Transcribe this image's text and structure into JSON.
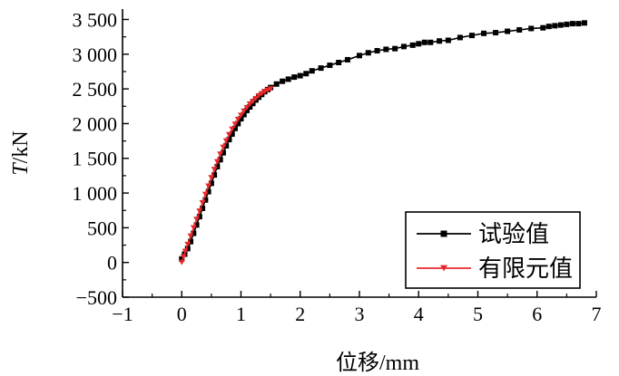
{
  "chart_data": {
    "type": "line",
    "xlabel": "位移/mm",
    "ylabel_italic": "T",
    "ylabel_rest": "/kN",
    "xlim": [
      -1,
      7
    ],
    "ylim": [
      -500,
      3650
    ],
    "x_ticks": [
      -1,
      0,
      1,
      2,
      3,
      4,
      5,
      6,
      7
    ],
    "x_tick_labels": [
      "−1",
      "0",
      "1",
      "2",
      "3",
      "4",
      "5",
      "6",
      "7"
    ],
    "y_ticks": [
      -500,
      0,
      500,
      1000,
      1500,
      2000,
      2500,
      3000,
      3500
    ],
    "y_tick_labels": [
      "−500",
      "0",
      "500",
      "1 000",
      "1 500",
      "2 000",
      "2 500",
      "3 000",
      "3 500"
    ],
    "legend_position": "bottom-right",
    "series": [
      {
        "name": "试验值",
        "color": "#000000",
        "marker": "square",
        "x": [
          0.0,
          0.05,
          0.1,
          0.15,
          0.2,
          0.25,
          0.3,
          0.35,
          0.4,
          0.45,
          0.5,
          0.55,
          0.6,
          0.65,
          0.7,
          0.75,
          0.8,
          0.85,
          0.9,
          0.95,
          1.0,
          1.05,
          1.1,
          1.15,
          1.2,
          1.25,
          1.3,
          1.35,
          1.4,
          1.45,
          1.5,
          1.6,
          1.7,
          1.8,
          1.9,
          2.0,
          2.1,
          2.2,
          2.35,
          2.5,
          2.65,
          2.8,
          3.0,
          3.15,
          3.3,
          3.45,
          3.6,
          3.75,
          3.9,
          4.0,
          4.1,
          4.2,
          4.35,
          4.5,
          4.7,
          4.9,
          5.1,
          5.3,
          5.5,
          5.7,
          5.9,
          6.1,
          6.2,
          6.3,
          6.4,
          6.5,
          6.6,
          6.7,
          6.8
        ],
        "y": [
          50,
          120,
          200,
          300,
          420,
          540,
          660,
          780,
          900,
          1020,
          1140,
          1260,
          1380,
          1480,
          1580,
          1680,
          1770,
          1850,
          1930,
          2000,
          2070,
          2130,
          2190,
          2240,
          2290,
          2340,
          2380,
          2420,
          2460,
          2490,
          2520,
          2570,
          2610,
          2640,
          2670,
          2690,
          2720,
          2760,
          2800,
          2840,
          2880,
          2920,
          2980,
          3020,
          3050,
          3070,
          3080,
          3110,
          3130,
          3150,
          3170,
          3170,
          3190,
          3200,
          3240,
          3270,
          3300,
          3310,
          3330,
          3350,
          3370,
          3380,
          3400,
          3410,
          3420,
          3430,
          3440,
          3440,
          3450
        ]
      },
      {
        "name": "有限元值",
        "color": "#e8282b",
        "marker": "triangle-down",
        "x": [
          0.0,
          0.03,
          0.06,
          0.1,
          0.15,
          0.2,
          0.25,
          0.3,
          0.35,
          0.4,
          0.45,
          0.5,
          0.55,
          0.6,
          0.65,
          0.7,
          0.75,
          0.8,
          0.85,
          0.9,
          0.95,
          1.0,
          1.05,
          1.1,
          1.15,
          1.2,
          1.25,
          1.3,
          1.35,
          1.4,
          1.45,
          1.5
        ],
        "y": [
          0,
          80,
          160,
          260,
          380,
          500,
          620,
          740,
          860,
          980,
          1100,
          1220,
          1340,
          1450,
          1560,
          1660,
          1750,
          1840,
          1920,
          1990,
          2060,
          2120,
          2180,
          2230,
          2280,
          2320,
          2360,
          2400,
          2430,
          2460,
          2480,
          2500
        ]
      }
    ]
  }
}
